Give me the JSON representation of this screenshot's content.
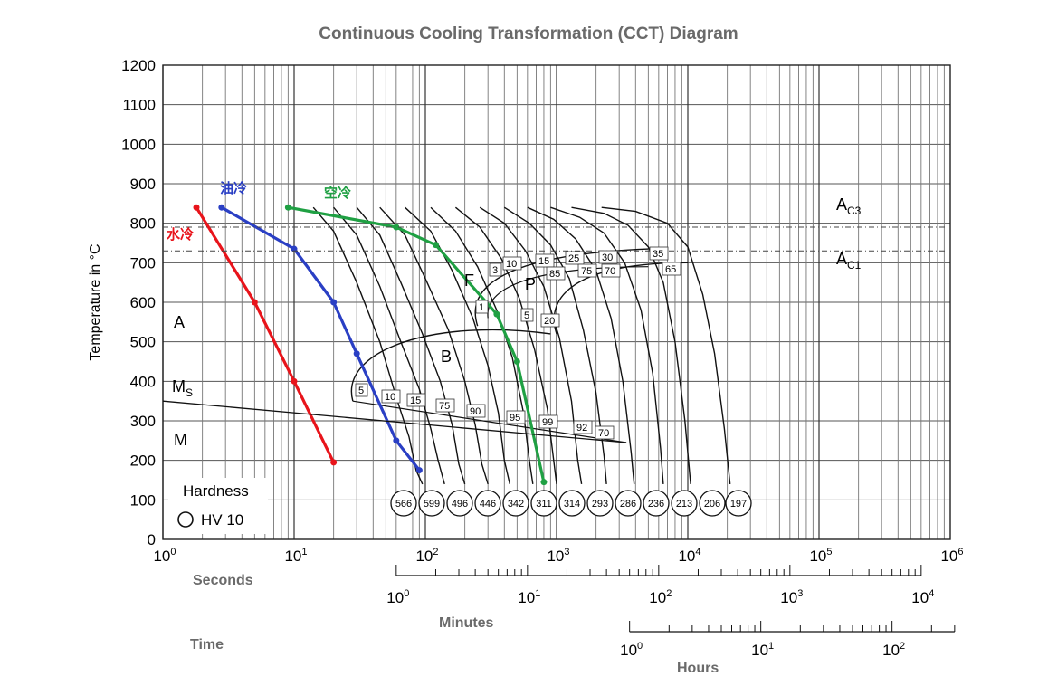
{
  "chart_data": {
    "type": "line",
    "title": "Continuous Cooling Transformation (CCT) Diagram",
    "ylabel": "Temperature in °C",
    "x_scale": "log",
    "xlim": [
      1,
      1000000
    ],
    "ylim": [
      0,
      1200
    ],
    "x_ticks": [
      {
        "base": "10",
        "exp": "0"
      },
      {
        "base": "10",
        "exp": "1"
      },
      {
        "base": "10",
        "exp": "2"
      },
      {
        "base": "10",
        "exp": "3"
      },
      {
        "base": "10",
        "exp": "4"
      },
      {
        "base": "10",
        "exp": "5"
      },
      {
        "base": "10",
        "exp": "6"
      }
    ],
    "y_ticks": [
      "0",
      "100",
      "200",
      "300",
      "400",
      "500",
      "600",
      "700",
      "800",
      "900",
      "1000",
      "1100",
      "1200"
    ],
    "secondary_axes": [
      {
        "label": "Seconds",
        "ticks": []
      },
      {
        "label": "Minutes",
        "ticks": [
          {
            "base": "10",
            "exp": "0"
          },
          {
            "base": "10",
            "exp": "1"
          },
          {
            "base": "10",
            "exp": "2"
          },
          {
            "base": "10",
            "exp": "3"
          },
          {
            "base": "10",
            "exp": "4"
          }
        ]
      },
      {
        "label": "Hours",
        "ticks": [
          {
            "base": "10",
            "exp": "0"
          },
          {
            "base": "10",
            "exp": "1"
          },
          {
            "base": "10",
            "exp": "2"
          }
        ]
      }
    ],
    "time_label": "Time",
    "lines": {
      "ac3": {
        "label_main": "A",
        "label_sub": "C3",
        "temp": 790
      },
      "ac1": {
        "label_main": "A",
        "label_sub": "C1",
        "temp": 730
      },
      "ms": {
        "label_main": "M",
        "label_sub": "S",
        "temp": 350
      }
    },
    "region_labels": [
      "A",
      "M",
      "B",
      "F",
      "P"
    ],
    "series": [
      {
        "name": "水冷",
        "color": "#e8141b",
        "points": [
          [
            1.8,
            840
          ],
          [
            5,
            600
          ],
          [
            10,
            400
          ],
          [
            20,
            195
          ]
        ]
      },
      {
        "name": "油冷",
        "color": "#2a3fc4",
        "points": [
          [
            2.8,
            840
          ],
          [
            10,
            735
          ],
          [
            20,
            600
          ],
          [
            30,
            470
          ],
          [
            60,
            250
          ],
          [
            90,
            175
          ]
        ]
      },
      {
        "name": "空冷",
        "color": "#1fa043",
        "points": [
          [
            9,
            840
          ],
          [
            60,
            790
          ],
          [
            120,
            745
          ],
          [
            350,
            570
          ],
          [
            500,
            450
          ],
          [
            800,
            145
          ]
        ]
      }
    ],
    "percent_labels": [
      "5",
      "10",
      "15",
      "75",
      "90",
      "95",
      "99",
      "92",
      "70",
      "1",
      "3",
      "10",
      "15",
      "25",
      "30",
      "35",
      "85",
      "75",
      "70",
      "65",
      "5",
      "20"
    ],
    "hardness_values": [
      "566",
      "599",
      "496",
      "446",
      "342",
      "311",
      "314",
      "293",
      "286",
      "236",
      "213",
      "206",
      "197"
    ],
    "legend": {
      "title": "Hardness",
      "item": "HV 10"
    }
  }
}
